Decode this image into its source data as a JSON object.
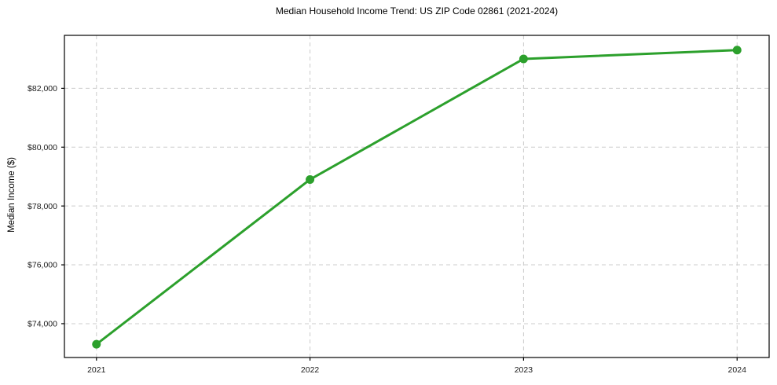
{
  "chart_data": {
    "type": "line",
    "title": "Median Household Income Trend: US ZIP Code 02861 (2021-2024)",
    "xlabel": "",
    "ylabel": "Median Income ($)",
    "series": [
      {
        "name": "Median Household Income",
        "x": [
          2021,
          2022,
          2023,
          2024
        ],
        "values": [
          73300,
          78900,
          83000,
          83300
        ]
      }
    ],
    "x_ticks": [
      2021,
      2022,
      2023,
      2024
    ],
    "x_tick_labels": [
      "2021",
      "2022",
      "2023",
      "2024"
    ],
    "y_ticks": [
      74000,
      76000,
      78000,
      80000,
      82000
    ],
    "y_tick_labels": [
      "$74,000",
      "$76,000",
      "$78,000",
      "$80,000",
      "$82,000"
    ],
    "xlim": [
      2020.85,
      2024.15
    ],
    "ylim": [
      72850,
      83800
    ],
    "grid": true,
    "legend": "none",
    "line_color": "#2ca02c",
    "marker_color": "#2ca02c",
    "grid_color": "#cccccc",
    "spine_color": "#000000"
  }
}
